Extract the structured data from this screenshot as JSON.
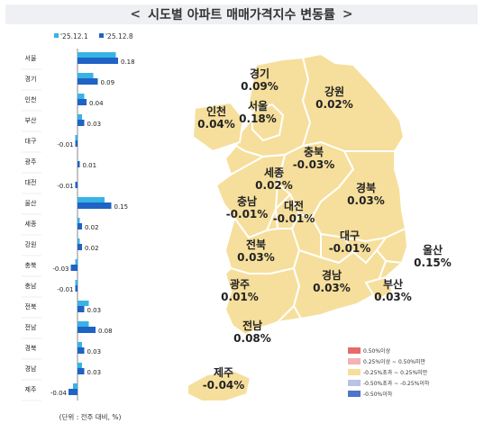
{
  "title": "시도별 아파트 매매가격지수 변동률",
  "colors": {
    "series1": "#37b3e6",
    "series2": "#1f63c4",
    "map_fill": "#f6df9c"
  },
  "chart_data": [
    {
      "type": "bar",
      "orientation": "horizontal",
      "categories": [
        "서울",
        "경기",
        "인천",
        "부산",
        "대구",
        "광주",
        "대전",
        "울산",
        "세종",
        "강원",
        "충북",
        "충남",
        "전북",
        "전남",
        "경북",
        "경남",
        "제주"
      ],
      "series": [
        {
          "name": "'25.12.1",
          "values": [
            0.17,
            0.07,
            0.03,
            0.02,
            -0.01,
            0.0,
            0.0,
            0.12,
            0.01,
            0.01,
            -0.01,
            -0.01,
            0.05,
            0.05,
            0.02,
            0.02,
            -0.02
          ]
        },
        {
          "name": "'25.12.8",
          "values": [
            0.18,
            0.09,
            0.04,
            0.03,
            -0.01,
            0.01,
            -0.01,
            0.15,
            0.02,
            0.02,
            -0.03,
            -0.01,
            0.03,
            0.08,
            0.03,
            0.03,
            -0.04
          ]
        }
      ],
      "value_labels": [
        "0.18",
        "0.09",
        "0.04",
        "0.03",
        "-0.01",
        "0.01",
        "-0.01",
        "0.15",
        "0.02",
        "0.02",
        "-0.03",
        "-0.01",
        "0.03",
        "0.08",
        "0.03",
        "0.03",
        "-0.04"
      ],
      "note": "(단위 : 전주 대비, %)"
    },
    {
      "type": "choropleth-map",
      "regions": [
        {
          "name": "경기",
          "value": "0.09%"
        },
        {
          "name": "강원",
          "value": "0.02%"
        },
        {
          "name": "인천",
          "value": "0.04%"
        },
        {
          "name": "서울",
          "value": "0.18%"
        },
        {
          "name": "충북",
          "value": "-0.03%"
        },
        {
          "name": "세종",
          "value": "0.02%"
        },
        {
          "name": "경북",
          "value": "0.03%"
        },
        {
          "name": "충남",
          "value": "-0.01%"
        },
        {
          "name": "대전",
          "value": "-0.01%"
        },
        {
          "name": "대구",
          "value": "-0.01%"
        },
        {
          "name": "울산",
          "value": "0.15%"
        },
        {
          "name": "전북",
          "value": "0.03%"
        },
        {
          "name": "광주",
          "value": "0.01%"
        },
        {
          "name": "경남",
          "value": "0.03%"
        },
        {
          "name": "부산",
          "value": "0.03%"
        },
        {
          "name": "전남",
          "value": "0.08%"
        },
        {
          "name": "제주",
          "value": "-0.04%"
        }
      ],
      "legend": [
        {
          "label": "0.50%이상",
          "color": "#e56b6b"
        },
        {
          "label": "0.25%이상 ~ 0.50%미만",
          "color": "#f2b3b3"
        },
        {
          "label": "-0.25%초과 ~ 0.25%미만",
          "color": "#f6df9c"
        },
        {
          "label": "-0.50%초과 ~ -0.25%이하",
          "color": "#b7c2e6"
        },
        {
          "label": "-0.50%이하",
          "color": "#4f74c9"
        }
      ]
    }
  ]
}
